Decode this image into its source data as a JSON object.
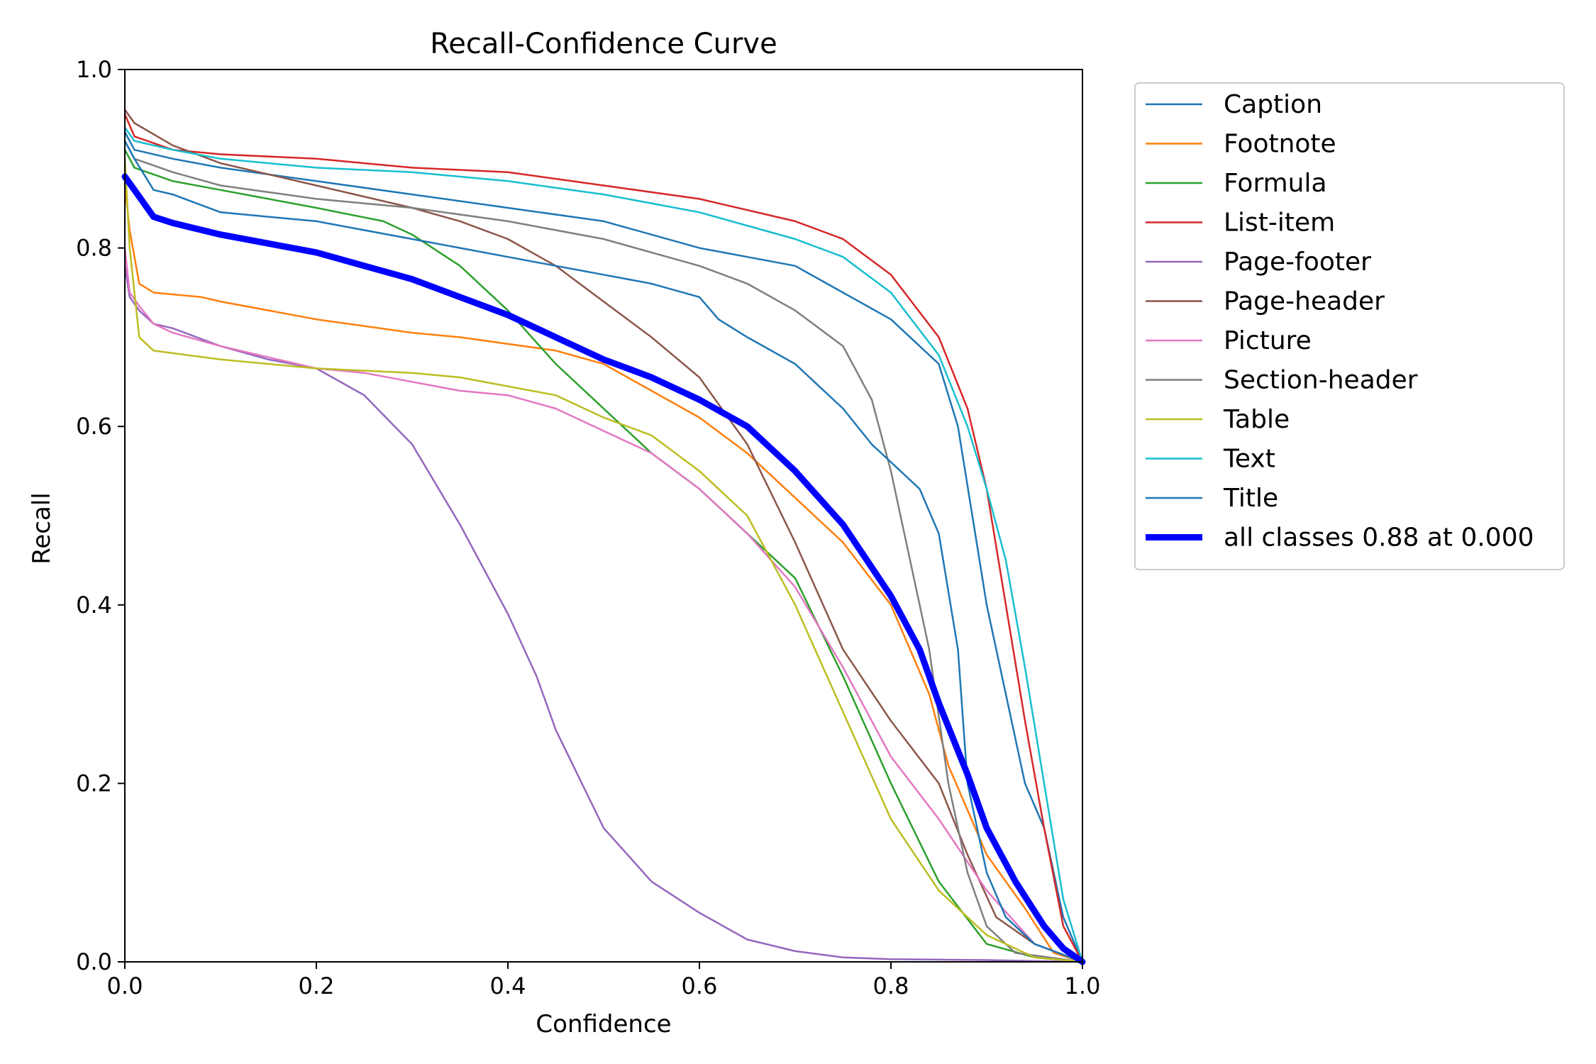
{
  "chart_data": {
    "type": "line",
    "title": "Recall-Confidence Curve",
    "xlabel": "Confidence",
    "ylabel": "Recall",
    "xlim": [
      0,
      1
    ],
    "ylim": [
      0,
      1
    ],
    "xticks": [
      "0.0",
      "0.2",
      "0.4",
      "0.6",
      "0.8",
      "1.0"
    ],
    "yticks": [
      "0.0",
      "0.2",
      "0.4",
      "0.6",
      "0.8",
      "1.0"
    ],
    "grid": false,
    "legend_position": "outside-right-top",
    "series": [
      {
        "name": "Caption",
        "color": "#1f77b4",
        "points": [
          [
            0,
            0.93
          ],
          [
            0.01,
            0.91
          ],
          [
            0.05,
            0.9
          ],
          [
            0.1,
            0.89
          ],
          [
            0.2,
            0.875
          ],
          [
            0.3,
            0.86
          ],
          [
            0.4,
            0.845
          ],
          [
            0.5,
            0.83
          ],
          [
            0.6,
            0.8
          ],
          [
            0.65,
            0.79
          ],
          [
            0.7,
            0.78
          ],
          [
            0.75,
            0.75
          ],
          [
            0.8,
            0.72
          ],
          [
            0.85,
            0.67
          ],
          [
            0.87,
            0.6
          ],
          [
            0.9,
            0.4
          ],
          [
            0.92,
            0.3
          ],
          [
            0.94,
            0.2
          ],
          [
            0.96,
            0.15
          ],
          [
            0.98,
            0.05
          ],
          [
            1.0,
            0.0
          ]
        ]
      },
      {
        "name": "Footnote",
        "color": "#ff7f0e",
        "points": [
          [
            0,
            0.87
          ],
          [
            0.005,
            0.82
          ],
          [
            0.015,
            0.76
          ],
          [
            0.03,
            0.75
          ],
          [
            0.08,
            0.745
          ],
          [
            0.1,
            0.74
          ],
          [
            0.2,
            0.72
          ],
          [
            0.3,
            0.705
          ],
          [
            0.35,
            0.7
          ],
          [
            0.45,
            0.685
          ],
          [
            0.5,
            0.67
          ],
          [
            0.55,
            0.64
          ],
          [
            0.6,
            0.61
          ],
          [
            0.65,
            0.57
          ],
          [
            0.7,
            0.52
          ],
          [
            0.75,
            0.47
          ],
          [
            0.8,
            0.4
          ],
          [
            0.84,
            0.3
          ],
          [
            0.86,
            0.22
          ],
          [
            0.9,
            0.12
          ],
          [
            0.94,
            0.06
          ],
          [
            0.97,
            0.01
          ],
          [
            1.0,
            0.0
          ]
        ]
      },
      {
        "name": "Formula",
        "color": "#2ca02c",
        "points": [
          [
            0,
            0.91
          ],
          [
            0.01,
            0.89
          ],
          [
            0.05,
            0.875
          ],
          [
            0.1,
            0.865
          ],
          [
            0.2,
            0.845
          ],
          [
            0.27,
            0.83
          ],
          [
            0.3,
            0.815
          ],
          [
            0.35,
            0.78
          ],
          [
            0.4,
            0.73
          ],
          [
            0.45,
            0.67
          ],
          [
            0.5,
            0.62
          ],
          [
            0.55,
            0.57
          ],
          [
            0.6,
            0.53
          ],
          [
            0.65,
            0.48
          ],
          [
            0.7,
            0.43
          ],
          [
            0.75,
            0.32
          ],
          [
            0.8,
            0.2
          ],
          [
            0.85,
            0.09
          ],
          [
            0.9,
            0.02
          ],
          [
            0.95,
            0.005
          ],
          [
            1.0,
            0.0
          ]
        ]
      },
      {
        "name": "List-item",
        "color": "#d62728",
        "points": [
          [
            0,
            0.95
          ],
          [
            0.01,
            0.925
          ],
          [
            0.05,
            0.91
          ],
          [
            0.1,
            0.905
          ],
          [
            0.2,
            0.9
          ],
          [
            0.3,
            0.89
          ],
          [
            0.4,
            0.885
          ],
          [
            0.5,
            0.87
          ],
          [
            0.6,
            0.855
          ],
          [
            0.7,
            0.83
          ],
          [
            0.75,
            0.81
          ],
          [
            0.8,
            0.77
          ],
          [
            0.85,
            0.7
          ],
          [
            0.88,
            0.62
          ],
          [
            0.9,
            0.53
          ],
          [
            0.92,
            0.4
          ],
          [
            0.94,
            0.27
          ],
          [
            0.96,
            0.15
          ],
          [
            0.98,
            0.04
          ],
          [
            1.0,
            0.0
          ]
        ]
      },
      {
        "name": "Page-footer",
        "color": "#9467bd",
        "points": [
          [
            0,
            0.78
          ],
          [
            0.005,
            0.745
          ],
          [
            0.015,
            0.73
          ],
          [
            0.03,
            0.715
          ],
          [
            0.05,
            0.71
          ],
          [
            0.1,
            0.69
          ],
          [
            0.15,
            0.675
          ],
          [
            0.2,
            0.665
          ],
          [
            0.25,
            0.635
          ],
          [
            0.3,
            0.58
          ],
          [
            0.35,
            0.49
          ],
          [
            0.4,
            0.39
          ],
          [
            0.43,
            0.32
          ],
          [
            0.45,
            0.26
          ],
          [
            0.5,
            0.15
          ],
          [
            0.55,
            0.09
          ],
          [
            0.6,
            0.055
          ],
          [
            0.65,
            0.025
          ],
          [
            0.7,
            0.012
          ],
          [
            0.75,
            0.005
          ],
          [
            0.8,
            0.003
          ],
          [
            0.9,
            0.002
          ],
          [
            1.0,
            0.0
          ]
        ]
      },
      {
        "name": "Page-header",
        "color": "#8c564b",
        "points": [
          [
            0,
            0.955
          ],
          [
            0.01,
            0.94
          ],
          [
            0.05,
            0.915
          ],
          [
            0.1,
            0.895
          ],
          [
            0.2,
            0.87
          ],
          [
            0.3,
            0.845
          ],
          [
            0.35,
            0.83
          ],
          [
            0.4,
            0.81
          ],
          [
            0.45,
            0.78
          ],
          [
            0.5,
            0.74
          ],
          [
            0.55,
            0.7
          ],
          [
            0.6,
            0.655
          ],
          [
            0.65,
            0.58
          ],
          [
            0.7,
            0.47
          ],
          [
            0.75,
            0.35
          ],
          [
            0.8,
            0.27
          ],
          [
            0.85,
            0.2
          ],
          [
            0.88,
            0.12
          ],
          [
            0.91,
            0.05
          ],
          [
            0.95,
            0.02
          ],
          [
            1.0,
            0.0
          ]
        ]
      },
      {
        "name": "Picture",
        "color": "#e377c2",
        "points": [
          [
            0,
            0.8
          ],
          [
            0.005,
            0.75
          ],
          [
            0.015,
            0.735
          ],
          [
            0.03,
            0.715
          ],
          [
            0.05,
            0.705
          ],
          [
            0.1,
            0.69
          ],
          [
            0.2,
            0.665
          ],
          [
            0.25,
            0.66
          ],
          [
            0.3,
            0.65
          ],
          [
            0.35,
            0.64
          ],
          [
            0.4,
            0.635
          ],
          [
            0.45,
            0.62
          ],
          [
            0.5,
            0.595
          ],
          [
            0.55,
            0.57
          ],
          [
            0.6,
            0.53
          ],
          [
            0.65,
            0.48
          ],
          [
            0.7,
            0.42
          ],
          [
            0.75,
            0.33
          ],
          [
            0.8,
            0.23
          ],
          [
            0.85,
            0.16
          ],
          [
            0.9,
            0.08
          ],
          [
            0.95,
            0.02
          ],
          [
            1.0,
            0.0
          ]
        ]
      },
      {
        "name": "Section-header",
        "color": "#7f7f7f",
        "points": [
          [
            0,
            0.92
          ],
          [
            0.01,
            0.9
          ],
          [
            0.05,
            0.885
          ],
          [
            0.1,
            0.87
          ],
          [
            0.2,
            0.855
          ],
          [
            0.3,
            0.845
          ],
          [
            0.4,
            0.83
          ],
          [
            0.5,
            0.81
          ],
          [
            0.6,
            0.78
          ],
          [
            0.65,
            0.76
          ],
          [
            0.7,
            0.73
          ],
          [
            0.75,
            0.69
          ],
          [
            0.78,
            0.63
          ],
          [
            0.8,
            0.55
          ],
          [
            0.82,
            0.45
          ],
          [
            0.84,
            0.35
          ],
          [
            0.86,
            0.2
          ],
          [
            0.88,
            0.1
          ],
          [
            0.9,
            0.04
          ],
          [
            0.93,
            0.01
          ],
          [
            1.0,
            0.0
          ]
        ]
      },
      {
        "name": "Table",
        "color": "#bcbd22",
        "points": [
          [
            0,
            0.9
          ],
          [
            0.005,
            0.8
          ],
          [
            0.015,
            0.7
          ],
          [
            0.03,
            0.685
          ],
          [
            0.1,
            0.675
          ],
          [
            0.2,
            0.665
          ],
          [
            0.3,
            0.66
          ],
          [
            0.35,
            0.655
          ],
          [
            0.4,
            0.645
          ],
          [
            0.45,
            0.635
          ],
          [
            0.5,
            0.61
          ],
          [
            0.55,
            0.59
          ],
          [
            0.6,
            0.55
          ],
          [
            0.65,
            0.5
          ],
          [
            0.7,
            0.4
          ],
          [
            0.75,
            0.28
          ],
          [
            0.8,
            0.16
          ],
          [
            0.85,
            0.08
          ],
          [
            0.9,
            0.03
          ],
          [
            0.95,
            0.005
          ],
          [
            1.0,
            0.0
          ]
        ]
      },
      {
        "name": "Text",
        "color": "#17becf",
        "points": [
          [
            0,
            0.935
          ],
          [
            0.01,
            0.92
          ],
          [
            0.05,
            0.91
          ],
          [
            0.1,
            0.9
          ],
          [
            0.2,
            0.89
          ],
          [
            0.3,
            0.885
          ],
          [
            0.4,
            0.875
          ],
          [
            0.5,
            0.86
          ],
          [
            0.6,
            0.84
          ],
          [
            0.7,
            0.81
          ],
          [
            0.75,
            0.79
          ],
          [
            0.8,
            0.75
          ],
          [
            0.85,
            0.68
          ],
          [
            0.88,
            0.6
          ],
          [
            0.9,
            0.53
          ],
          [
            0.92,
            0.45
          ],
          [
            0.94,
            0.33
          ],
          [
            0.96,
            0.2
          ],
          [
            0.98,
            0.07
          ],
          [
            1.0,
            0.0
          ]
        ]
      },
      {
        "name": "Title",
        "color": "#1f77b4",
        "points": [
          [
            0,
            0.92
          ],
          [
            0.01,
            0.9
          ],
          [
            0.03,
            0.865
          ],
          [
            0.05,
            0.86
          ],
          [
            0.1,
            0.84
          ],
          [
            0.15,
            0.835
          ],
          [
            0.2,
            0.83
          ],
          [
            0.3,
            0.81
          ],
          [
            0.4,
            0.79
          ],
          [
            0.45,
            0.78
          ],
          [
            0.5,
            0.77
          ],
          [
            0.55,
            0.76
          ],
          [
            0.6,
            0.745
          ],
          [
            0.62,
            0.72
          ],
          [
            0.65,
            0.7
          ],
          [
            0.7,
            0.67
          ],
          [
            0.72,
            0.65
          ],
          [
            0.75,
            0.62
          ],
          [
            0.78,
            0.58
          ],
          [
            0.8,
            0.56
          ],
          [
            0.83,
            0.53
          ],
          [
            0.85,
            0.48
          ],
          [
            0.87,
            0.35
          ],
          [
            0.88,
            0.2
          ],
          [
            0.9,
            0.1
          ],
          [
            0.92,
            0.05
          ],
          [
            0.95,
            0.02
          ],
          [
            1.0,
            0.0
          ]
        ]
      },
      {
        "name": "all classes 0.88 at 0.000",
        "color": "#0000ff",
        "thick": true,
        "points": [
          [
            0,
            0.88
          ],
          [
            0.01,
            0.865
          ],
          [
            0.02,
            0.85
          ],
          [
            0.03,
            0.835
          ],
          [
            0.05,
            0.828
          ],
          [
            0.1,
            0.815
          ],
          [
            0.15,
            0.805
          ],
          [
            0.2,
            0.795
          ],
          [
            0.25,
            0.78
          ],
          [
            0.3,
            0.765
          ],
          [
            0.35,
            0.745
          ],
          [
            0.4,
            0.725
          ],
          [
            0.45,
            0.7
          ],
          [
            0.5,
            0.675
          ],
          [
            0.55,
            0.655
          ],
          [
            0.6,
            0.63
          ],
          [
            0.65,
            0.6
          ],
          [
            0.7,
            0.55
          ],
          [
            0.75,
            0.49
          ],
          [
            0.8,
            0.41
          ],
          [
            0.83,
            0.35
          ],
          [
            0.85,
            0.29
          ],
          [
            0.88,
            0.21
          ],
          [
            0.9,
            0.15
          ],
          [
            0.93,
            0.09
          ],
          [
            0.96,
            0.04
          ],
          [
            0.98,
            0.015
          ],
          [
            1.0,
            0.0
          ]
        ]
      }
    ]
  }
}
